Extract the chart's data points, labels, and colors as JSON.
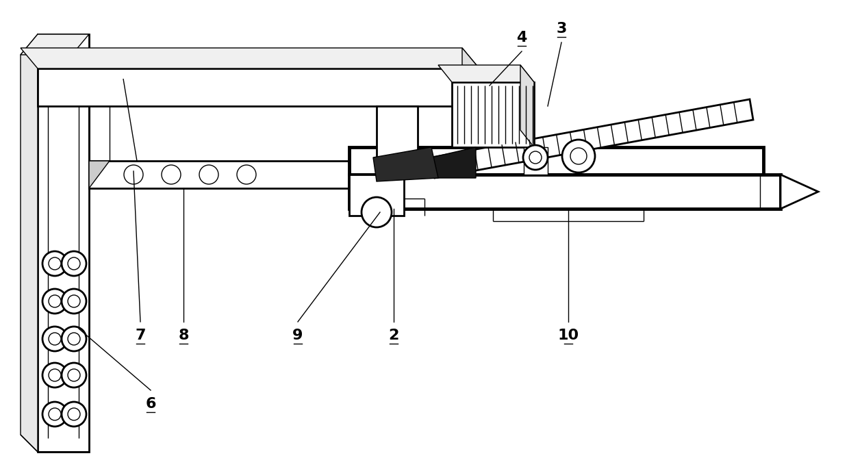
{
  "bg_color": "#ffffff",
  "line_color": "#000000",
  "fig_width": 12.4,
  "fig_height": 6.88,
  "lw_main": 2.0,
  "lw_thin": 1.0,
  "lw_thick": 3.5,
  "label_fontsize": 16
}
